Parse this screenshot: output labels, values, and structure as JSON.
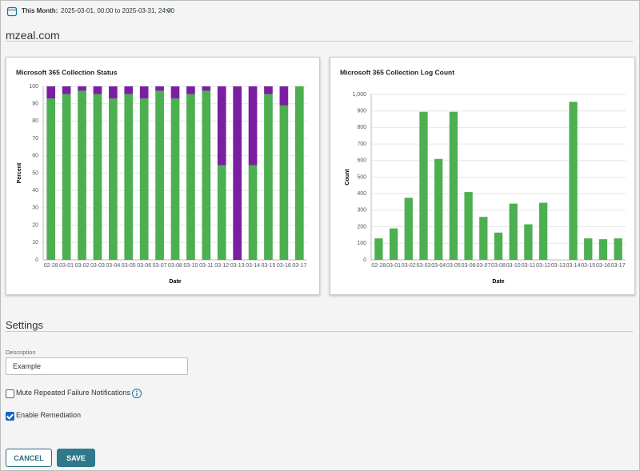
{
  "header": {
    "label": "This Month:",
    "range": "2025-03-01, 00:00 to 2025-03-31, 24:00"
  },
  "site": "mzeal.com",
  "chart_data": [
    {
      "type": "stacked_bar",
      "title": "Microsoft 365 Collection Status",
      "x_label": "Date",
      "y_label": "Percent",
      "categories": [
        "02-28",
        "03-01",
        "03-02",
        "03-03",
        "03-04",
        "03-05",
        "03-06",
        "03-07",
        "03-08",
        "03-10",
        "03-11",
        "03-12",
        "03-13",
        "03-14",
        "03-15",
        "03-16",
        "03-17"
      ],
      "series": [
        {
          "color": "#4caf50",
          "values": [
            93,
            95.5,
            97.5,
            95.5,
            93,
            95.5,
            93,
            97.5,
            93,
            95.5,
            97.5,
            54.5,
            0,
            54.5,
            95.5,
            89,
            100
          ]
        },
        {
          "color": "#7b1fa2",
          "values": [
            7,
            4.5,
            2.5,
            4.5,
            7,
            4.5,
            7,
            2.5,
            7,
            4.5,
            2.5,
            45.5,
            100,
            45.5,
            4.5,
            11,
            0
          ]
        }
      ],
      "ylim": [
        0,
        100
      ],
      "yticks": [
        0,
        10,
        20,
        30,
        40,
        50,
        60,
        70,
        80,
        90,
        100
      ],
      "grid": true
    },
    {
      "type": "bar",
      "title": "Microsoft 365 Collection Log Count",
      "x_label": "Date",
      "y_label": "Count",
      "categories": [
        "02-28",
        "03-01",
        "03-02",
        "03-03",
        "03-04",
        "03-05",
        "03-06",
        "03-07",
        "03-08",
        "03-10",
        "03-11",
        "03-12",
        "03-13",
        "03-14",
        "03-15",
        "03-16",
        "03-17"
      ],
      "values": [
        130,
        190,
        375,
        895,
        610,
        895,
        410,
        260,
        165,
        340,
        215,
        345,
        0,
        955,
        130,
        125,
        130
      ],
      "color": "#4caf50",
      "ylim": [
        0,
        1000
      ],
      "yticks": [
        0,
        100,
        200,
        300,
        400,
        500,
        600,
        700,
        800,
        900,
        {
          "value": 1000,
          "label": "1,000"
        }
      ],
      "grid": true
    }
  ],
  "settings": {
    "title": "Settings",
    "description_label": "Description",
    "description_value": "Example",
    "options": [
      {
        "label": "Mute Repeated Failure Notifications",
        "checked": false
      },
      {
        "label": "Enable Remediation",
        "checked": true
      }
    ]
  },
  "buttons": {
    "cancel": "CANCEL",
    "save": "SAVE"
  }
}
